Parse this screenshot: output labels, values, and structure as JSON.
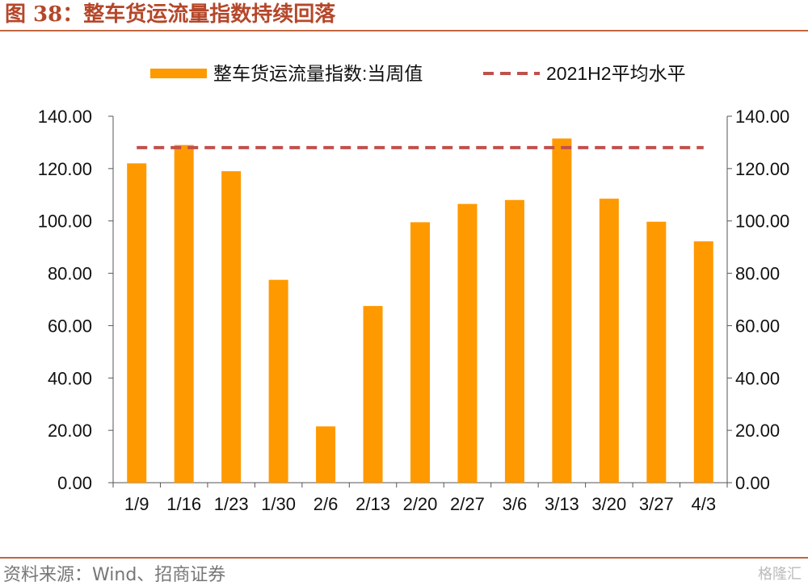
{
  "figure": {
    "title": "图 38：整车货运流量指数持续回落",
    "source": "资料来源：Wind、招商证券",
    "watermark": "格隆汇"
  },
  "colors": {
    "bar": "#ff9900",
    "avg_line": "#c0504d",
    "axis": "#555555",
    "accent": "#b5472a"
  },
  "chart_data": {
    "type": "bar",
    "categories": [
      "1/9",
      "1/16",
      "1/23",
      "1/30",
      "2/6",
      "2/13",
      "2/20",
      "2/27",
      "3/6",
      "3/13",
      "3/20",
      "3/27",
      "4/3"
    ],
    "series": [
      {
        "name": "整车货运流量指数:当周值",
        "type": "bar",
        "values": [
          122,
          129,
          119,
          77.5,
          21.5,
          67.5,
          99.5,
          106.5,
          108,
          131.5,
          108.5,
          99.7,
          92.2
        ]
      },
      {
        "name": "2021H2平均水平",
        "type": "line",
        "style": "dashed",
        "value": 128
      }
    ],
    "ylim": [
      0,
      140
    ],
    "yticks": [
      "0.00",
      "20.00",
      "40.00",
      "60.00",
      "80.00",
      "100.00",
      "120.00",
      "140.00"
    ],
    "ytick_values": [
      0,
      20,
      40,
      60,
      80,
      100,
      120,
      140
    ],
    "y2ticks": [
      "0.00",
      "20.00",
      "40.00",
      "60.00",
      "80.00",
      "100.00",
      "120.00",
      "140.00"
    ],
    "legend": "top",
    "grid": false
  }
}
